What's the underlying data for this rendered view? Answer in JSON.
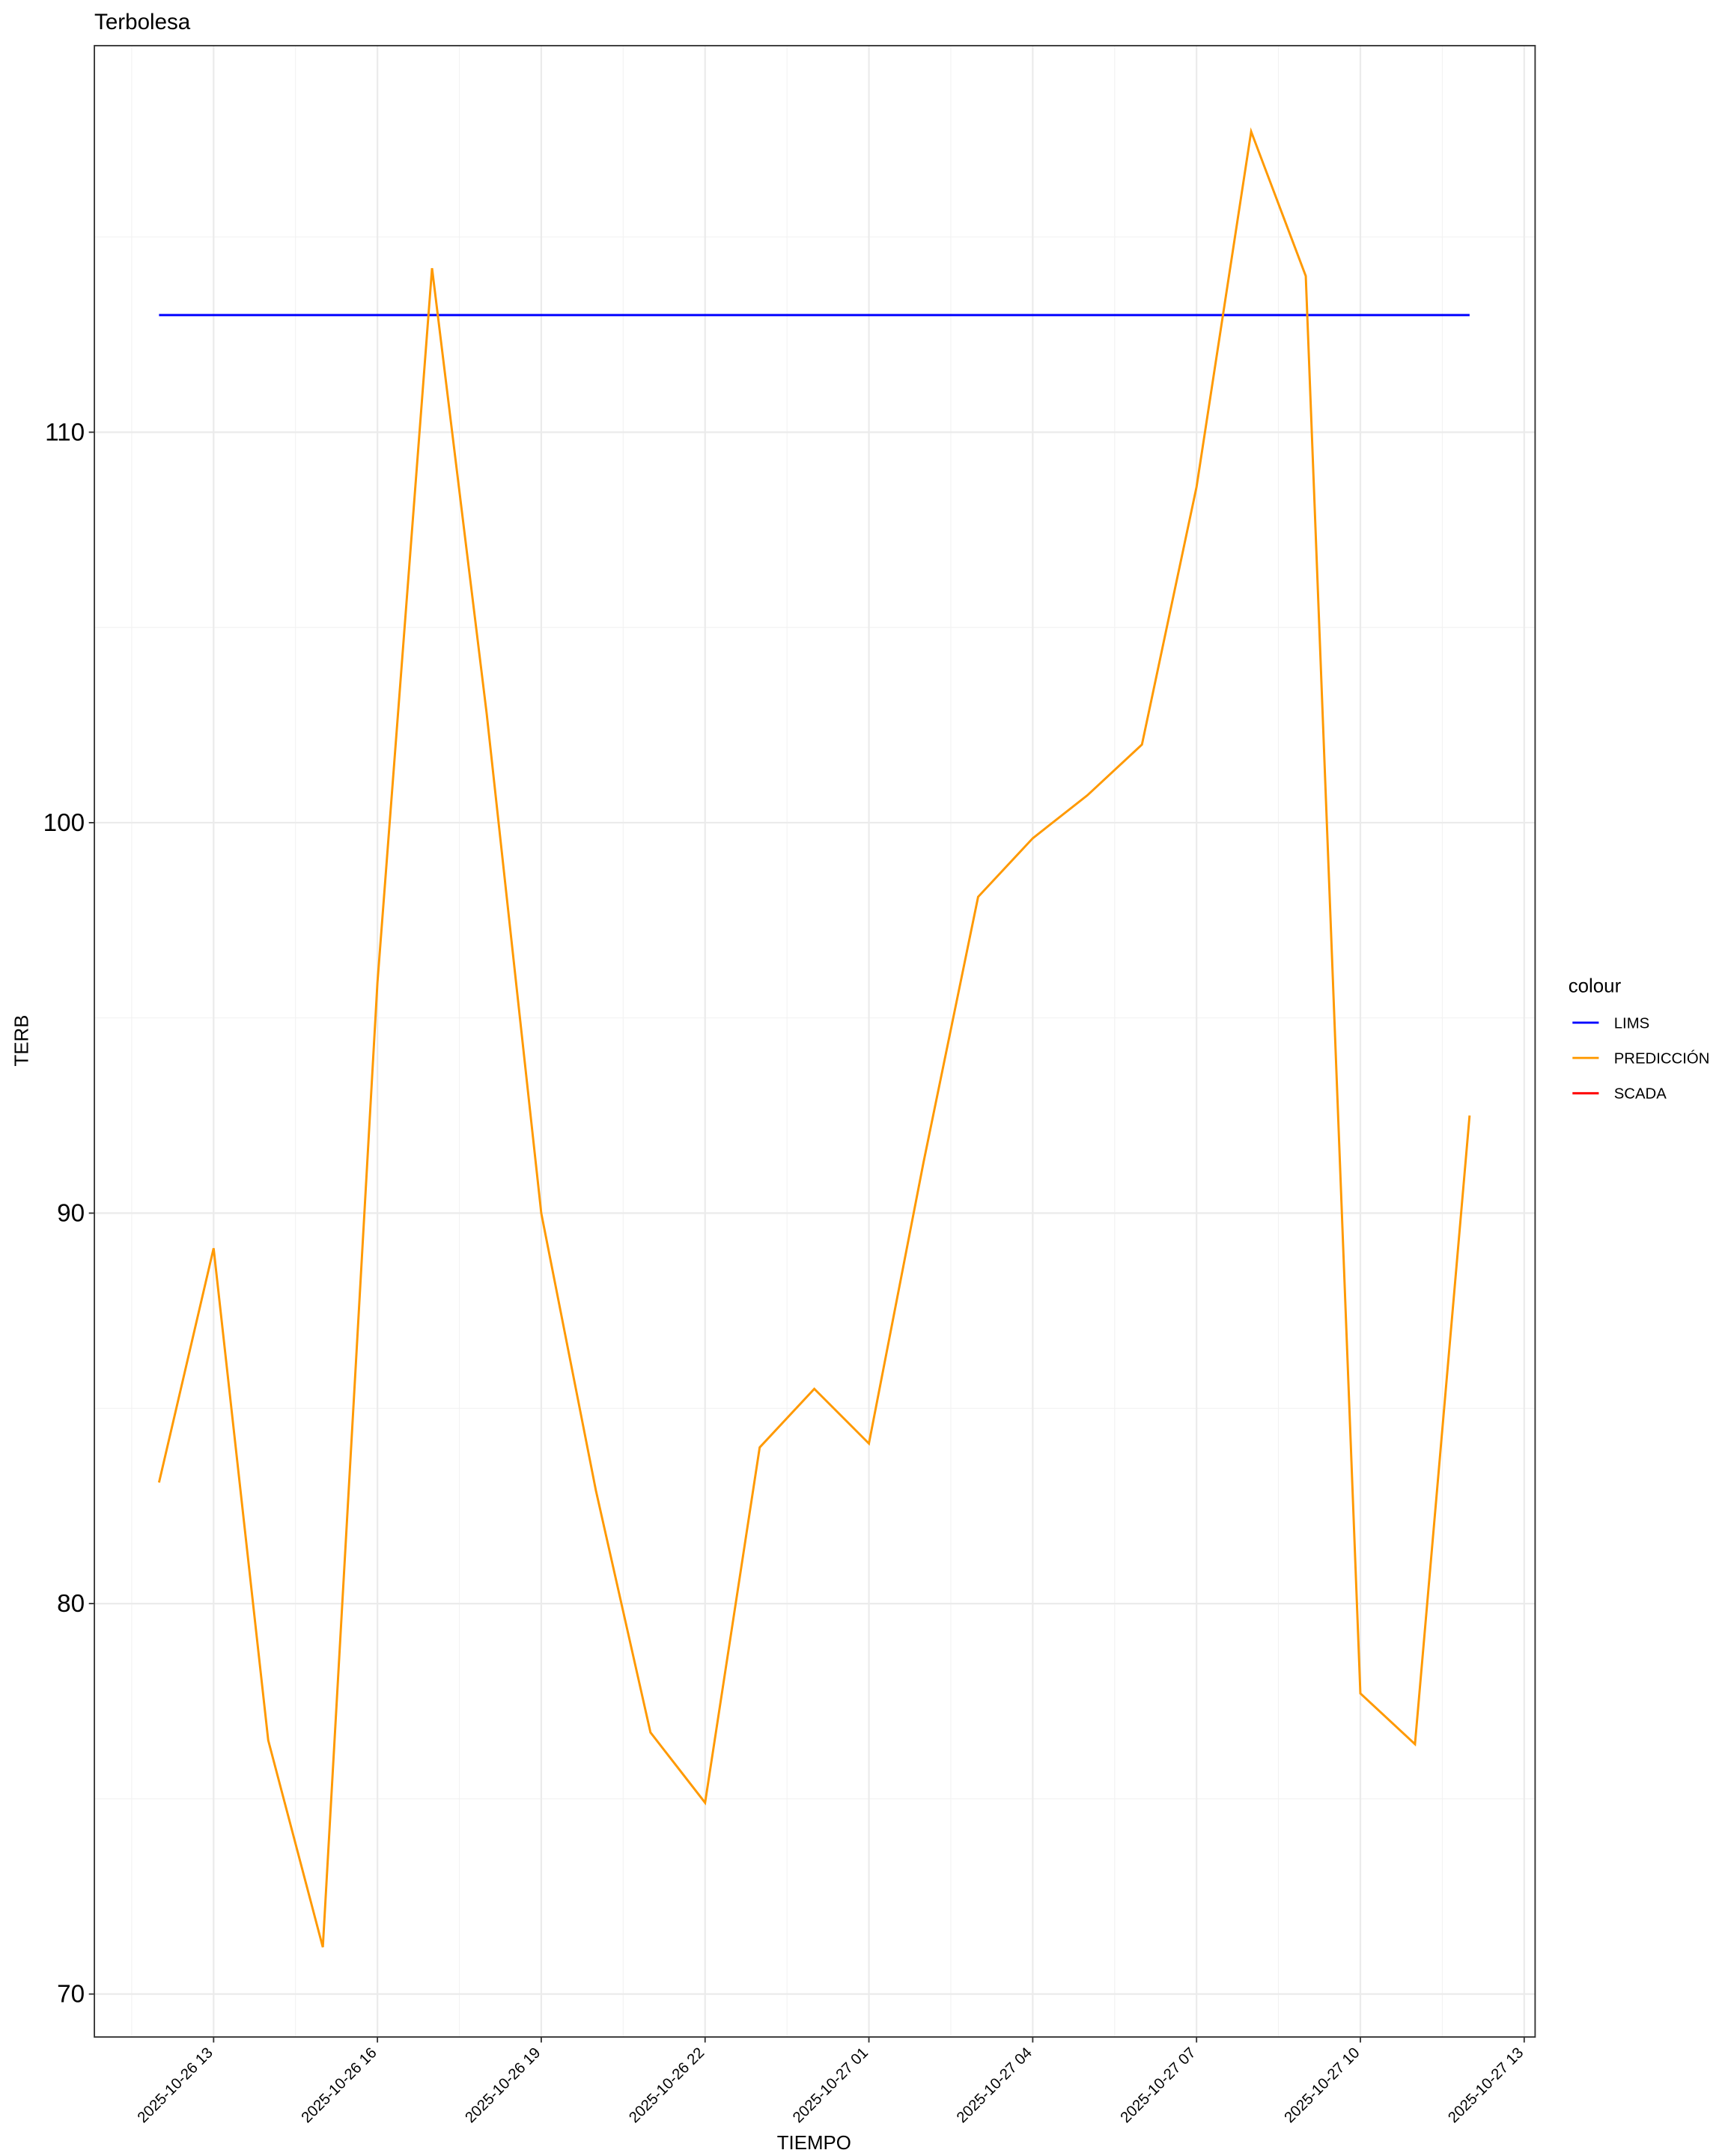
{
  "chart_data": {
    "type": "line",
    "title": "Terbolesa",
    "x_label": "TIEMPO",
    "y_label": "TERB",
    "x": [
      "2025-10-26 12",
      "2025-10-26 13",
      "2025-10-26 14",
      "2025-10-26 15",
      "2025-10-26 16",
      "2025-10-26 17",
      "2025-10-26 18",
      "2025-10-26 19",
      "2025-10-26 20",
      "2025-10-26 21",
      "2025-10-26 22",
      "2025-10-26 23",
      "2025-10-27 00",
      "2025-10-27 01",
      "2025-10-27 02",
      "2025-10-27 03",
      "2025-10-27 04",
      "2025-10-27 05",
      "2025-10-27 06",
      "2025-10-27 07",
      "2025-10-27 08",
      "2025-10-27 09",
      "2025-10-27 10",
      "2025-10-27 11",
      "2025-10-27 12"
    ],
    "series": [
      {
        "name": "LIMS",
        "color": "#0000ff",
        "values": [
          113,
          113,
          113,
          113,
          113,
          113,
          113,
          113,
          113,
          113,
          113,
          113,
          113,
          113,
          113,
          113,
          113,
          113,
          113,
          113,
          113,
          113,
          113,
          113,
          113
        ]
      },
      {
        "name": "PREDICCIÓN",
        "color": "#ff9900",
        "values": [
          83.1,
          89.1,
          76.5,
          71.2,
          95.9,
          114.2,
          102.8,
          90.0,
          82.9,
          76.7,
          74.9,
          84.0,
          85.5,
          84.1,
          91.3,
          98.1,
          99.6,
          100.7,
          102.0,
          108.6,
          117.7,
          114.0,
          77.7,
          76.4,
          92.5
        ]
      },
      {
        "name": "SCADA",
        "color": "#ff0000",
        "values": [
          null,
          null,
          null,
          null,
          null,
          null,
          null,
          null,
          null,
          null,
          null,
          null,
          null,
          null,
          null,
          null,
          null,
          null,
          null,
          null,
          null,
          null,
          null,
          null,
          null
        ]
      }
    ],
    "legend_title": "colour",
    "legend_position": "right",
    "xlim": [
      "2025-10-26 10:49",
      "2025-10-27 13:12"
    ],
    "xticks": [
      "2025-10-26 13",
      "2025-10-26 16",
      "2025-10-26 19",
      "2025-10-26 22",
      "2025-10-27 01",
      "2025-10-27 04",
      "2025-10-27 07",
      "2025-10-27 10",
      "2025-10-27 13"
    ],
    "ylim": [
      68.9,
      119.9
    ],
    "yticks": [
      70,
      80,
      90,
      100,
      110
    ],
    "grid": true
  }
}
